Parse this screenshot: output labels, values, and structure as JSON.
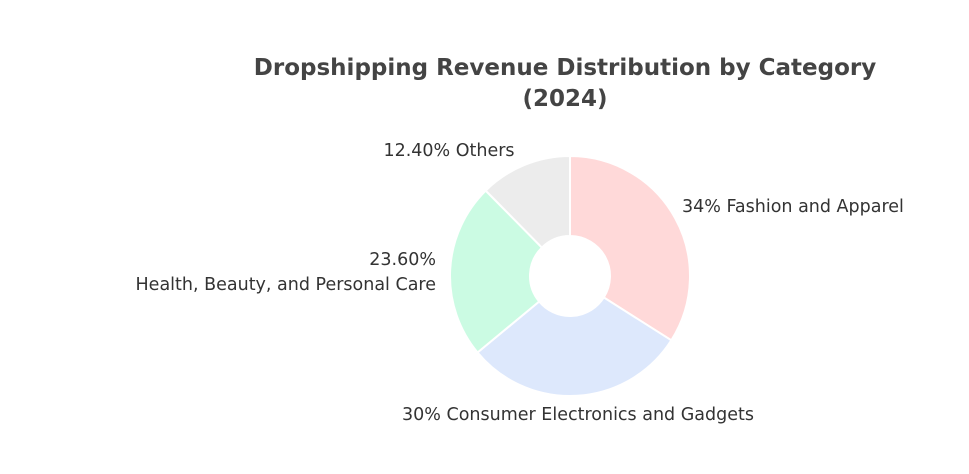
{
  "chart_data": {
    "type": "pie",
    "title_lines": [
      "Dropshipping Revenue Distribution by Category",
      "(2024)"
    ],
    "hole": true,
    "direction": "clockwise",
    "start_angle": "top",
    "slices": [
      {
        "label": "Fashion and Apparel",
        "value": 34,
        "value_text": "34%",
        "color": "#FFD9D9"
      },
      {
        "label": "Consumer Electronics and Gadgets",
        "value": 30,
        "value_text": "30%",
        "color": "#DDE8FC"
      },
      {
        "label": "Health, Beauty, and Personal Care",
        "value": 23.6,
        "value_text": "23.60%",
        "color": "#CBFBE3"
      },
      {
        "label": "Others",
        "value": 12.4,
        "value_text": "12.40%",
        "color": "#ECECEC"
      }
    ]
  }
}
